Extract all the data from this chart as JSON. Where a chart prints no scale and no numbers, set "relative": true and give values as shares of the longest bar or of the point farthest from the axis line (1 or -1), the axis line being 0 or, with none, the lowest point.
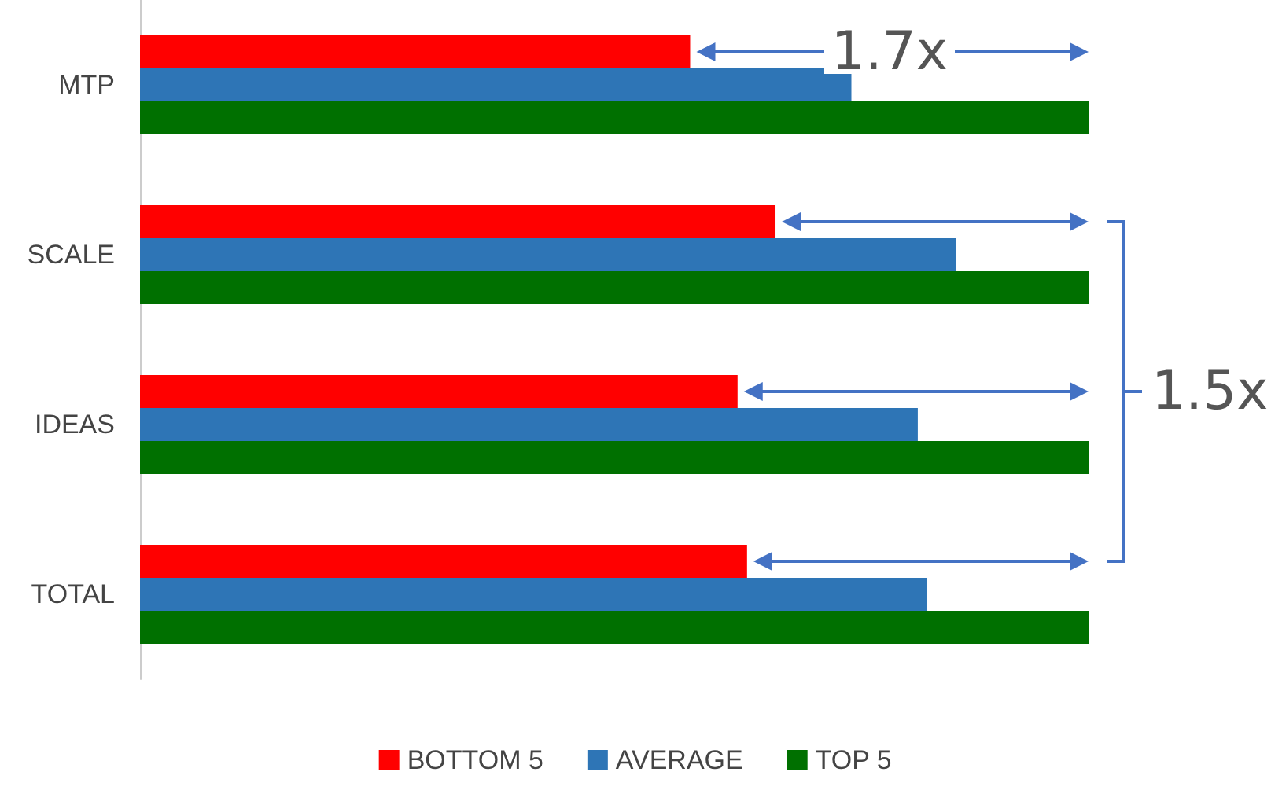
{
  "chart_data": {
    "type": "bar",
    "orientation": "horizontal",
    "relative": true,
    "categories": [
      "MTP",
      "SCALE",
      "IDEAS",
      "TOTAL"
    ],
    "series": [
      {
        "name": "BOTTOM 5",
        "color": "#ff0000",
        "values": [
          0.58,
          0.67,
          0.63,
          0.64
        ]
      },
      {
        "name": "AVERAGE",
        "color": "#2e75b6",
        "values": [
          0.75,
          0.86,
          0.82,
          0.83
        ]
      },
      {
        "name": "TOP 5",
        "color": "#007000",
        "values": [
          1,
          1,
          1,
          1
        ]
      }
    ],
    "annotations": [
      "1.7x",
      "1.5x"
    ],
    "legend": "bottom"
  }
}
